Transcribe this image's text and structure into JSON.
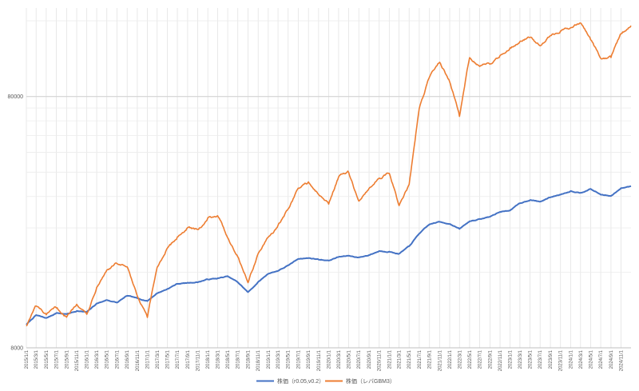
{
  "chart_data": {
    "type": "line",
    "title": "",
    "xlabel": "",
    "ylabel": "",
    "y_scale": "log",
    "ylim": [
      8000,
      180000
    ],
    "y_ticks": [
      8000,
      80000
    ],
    "y_tick_labels": [
      "8000",
      "80000"
    ],
    "x_tick_labels": [
      "2015/1/1",
      "2015/3/1",
      "2015/5/1",
      "2015/7/1",
      "2015/9/1",
      "2015/11/1",
      "2016/1/1",
      "2016/3/1",
      "2016/5/1",
      "2016/7/1",
      "2016/9/1",
      "2016/11/1",
      "2017/1/1",
      "2017/3/1",
      "2017/5/1",
      "2017/7/1",
      "2017/9/1",
      "2017/11/1",
      "2018/1/1",
      "2018/3/1",
      "2018/5/1",
      "2018/7/1",
      "2018/9/1",
      "2018/11/1",
      "2019/1/1",
      "2019/3/1",
      "2019/5/1",
      "2019/7/1",
      "2019/9/1",
      "2019/11/1",
      "2020/1/1",
      "2020/3/1",
      "2020/5/1",
      "2020/7/1",
      "2020/9/1",
      "2020/11/1",
      "2021/1/1",
      "2021/3/1",
      "2021/5/1",
      "2021/7/1",
      "2021/9/1",
      "2021/11/1",
      "2022/1/1",
      "2022/3/1",
      "2022/5/1",
      "2022/7/1",
      "2022/9/1",
      "2022/11/1",
      "2023/1/1",
      "2023/3/1",
      "2023/5/1",
      "2023/7/1",
      "2023/9/1",
      "2023/11/1",
      "2024/1/1",
      "2024/3/1",
      "2024/5/1",
      "2024/7/1",
      "2024/9/1",
      "2024/11/1"
    ],
    "grid": true,
    "legend_position": "bottom",
    "series": [
      {
        "name": "株価（r0.05,v0.2）",
        "color": "#4472C4",
        "x": [
          "2015/1/1",
          "2015/3/1",
          "2015/5/1",
          "2015/7/1",
          "2015/9/1",
          "2015/11/1",
          "2016/1/1",
          "2016/3/1",
          "2016/5/1",
          "2016/7/1",
          "2016/9/1",
          "2016/11/1",
          "2017/1/1",
          "2017/3/1",
          "2017/5/1",
          "2017/7/1",
          "2017/9/1",
          "2017/11/1",
          "2018/1/1",
          "2018/3/1",
          "2018/5/1",
          "2018/7/1",
          "2018/9/1",
          "2018/11/1",
          "2019/1/1",
          "2019/3/1",
          "2019/5/1",
          "2019/7/1",
          "2019/9/1",
          "2019/11/1",
          "2020/1/1",
          "2020/3/1",
          "2020/5/1",
          "2020/7/1",
          "2020/9/1",
          "2020/11/1",
          "2021/1/1",
          "2021/3/1",
          "2021/5/1",
          "2021/7/1",
          "2021/9/1",
          "2021/11/1",
          "2022/1/1",
          "2022/3/1",
          "2022/5/1",
          "2022/7/1",
          "2022/9/1",
          "2022/11/1",
          "2023/1/1",
          "2023/3/1",
          "2023/5/1",
          "2023/7/1",
          "2023/9/1",
          "2023/11/1",
          "2024/1/1",
          "2024/3/1",
          "2024/5/1",
          "2024/7/1",
          "2024/9/1",
          "2024/11/1",
          "2024/12/31"
        ],
        "values": [
          9900,
          10800,
          10500,
          11000,
          10900,
          11200,
          11100,
          12000,
          12400,
          12100,
          12900,
          12600,
          12300,
          13200,
          13700,
          14400,
          14500,
          14600,
          15000,
          15100,
          15400,
          14600,
          13300,
          14600,
          15800,
          16200,
          17000,
          18100,
          18200,
          18000,
          17800,
          18400,
          18600,
          18300,
          18700,
          19400,
          19300,
          18900,
          20300,
          22800,
          24800,
          25400,
          24900,
          23800,
          25500,
          26000,
          26600,
          27800,
          28200,
          30100,
          31000,
          30500,
          31800,
          32600,
          33600,
          33100,
          34300,
          32600,
          32100,
          34500,
          35200
        ]
      },
      {
        "name": "株価（レバGBM3）",
        "color": "#ED7D31",
        "x": [
          "2015/1/1",
          "2015/3/1",
          "2015/5/1",
          "2015/7/1",
          "2015/9/1",
          "2015/11/1",
          "2016/1/1",
          "2016/3/1",
          "2016/5/1",
          "2016/7/1",
          "2016/9/1",
          "2016/11/1",
          "2017/1/1",
          "2017/3/1",
          "2017/5/1",
          "2017/7/1",
          "2017/9/1",
          "2017/11/1",
          "2018/1/1",
          "2018/3/1",
          "2018/5/1",
          "2018/7/1",
          "2018/9/1",
          "2018/11/1",
          "2019/1/1",
          "2019/3/1",
          "2019/5/1",
          "2019/7/1",
          "2019/9/1",
          "2019/11/1",
          "2020/1/1",
          "2020/3/1",
          "2020/5/1",
          "2020/7/1",
          "2020/9/1",
          "2020/11/1",
          "2021/1/1",
          "2021/3/1",
          "2021/5/1",
          "2021/7/1",
          "2021/9/1",
          "2021/11/1",
          "2022/1/1",
          "2022/3/1",
          "2022/5/1",
          "2022/7/1",
          "2022/9/1",
          "2022/11/1",
          "2023/1/1",
          "2023/3/1",
          "2023/5/1",
          "2023/7/1",
          "2023/9/1",
          "2023/11/1",
          "2024/1/1",
          "2024/3/1",
          "2024/5/1",
          "2024/7/1",
          "2024/9/1",
          "2024/11/1",
          "2024/12/31"
        ],
        "values": [
          9800,
          11800,
          10800,
          11600,
          10600,
          12000,
          10900,
          14000,
          16300,
          17400,
          16700,
          12800,
          10600,
          16800,
          19800,
          22000,
          24000,
          23500,
          26200,
          27000,
          22000,
          18500,
          14600,
          19000,
          21900,
          24400,
          28500,
          34500,
          36500,
          32500,
          30000,
          38500,
          40000,
          30500,
          34500,
          38000,
          39500,
          29500,
          35500,
          72000,
          96000,
          110000,
          92000,
          67000,
          115000,
          105000,
          108000,
          116000,
          125000,
          132000,
          138000,
          128000,
          140000,
          146000,
          150000,
          158000,
          135000,
          113000,
          115000,
          143000,
          153000
        ]
      }
    ]
  }
}
